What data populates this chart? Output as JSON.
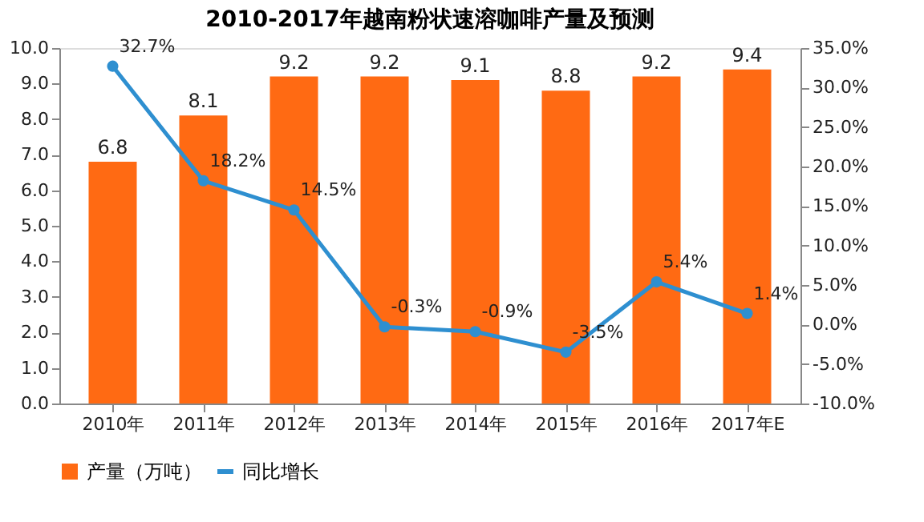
{
  "chart_data": {
    "type": "bar",
    "title": "2010-2017年越南粉状速溶咖啡产量及预测",
    "categories": [
      "2010年",
      "2011年",
      "2012年",
      "2013年",
      "2014年",
      "2015年",
      "2016年",
      "2017年E"
    ],
    "series": [
      {
        "name": "产量（万吨）",
        "color": "#ff6a13",
        "values": [
          6.8,
          8.1,
          9.2,
          9.2,
          9.1,
          8.8,
          9.2,
          9.4
        ]
      },
      {
        "name": "同比增长",
        "type": "line",
        "axis": "y2",
        "color": "#2e8fd0",
        "marker": "circle",
        "values": [
          32.7,
          18.2,
          14.5,
          -0.3,
          -0.9,
          -3.5,
          5.4,
          1.4
        ],
        "value_labels": [
          "32.7%",
          "18.2%",
          "14.5%",
          "-0.3%",
          "-0.9%",
          "-3.5%",
          "5.4%",
          "1.4%"
        ]
      }
    ],
    "data_labels": true,
    "ylim": [
      0,
      10
    ],
    "yticks": [
      {
        "value": 0,
        "label": "0.0"
      },
      {
        "value": 1,
        "label": "1.0"
      },
      {
        "value": 2,
        "label": "2.0"
      },
      {
        "value": 3,
        "label": "3.0"
      },
      {
        "value": 4,
        "label": "4.0"
      },
      {
        "value": 5,
        "label": "5.0"
      },
      {
        "value": 6,
        "label": "6.0"
      },
      {
        "value": 7,
        "label": "7.0"
      },
      {
        "value": 8,
        "label": "8.0"
      },
      {
        "value": 9,
        "label": "9.0"
      },
      {
        "value": 10,
        "label": "10.0"
      }
    ],
    "y2lim": [
      -10,
      35
    ],
    "y2ticks": [
      {
        "value": -10,
        "label": "-10.0%"
      },
      {
        "value": -5,
        "label": "-5.0%"
      },
      {
        "value": 0,
        "label": "0.0%"
      },
      {
        "value": 5,
        "label": "5.0%"
      },
      {
        "value": 10,
        "label": "10.0%"
      },
      {
        "value": 15,
        "label": "15.0%"
      },
      {
        "value": 20,
        "label": "20.0%"
      },
      {
        "value": 25,
        "label": "25.0%"
      },
      {
        "value": 30,
        "label": "30.0%"
      },
      {
        "value": 35,
        "label": "35.0%"
      }
    ],
    "legend": "bottom",
    "grid": false
  }
}
